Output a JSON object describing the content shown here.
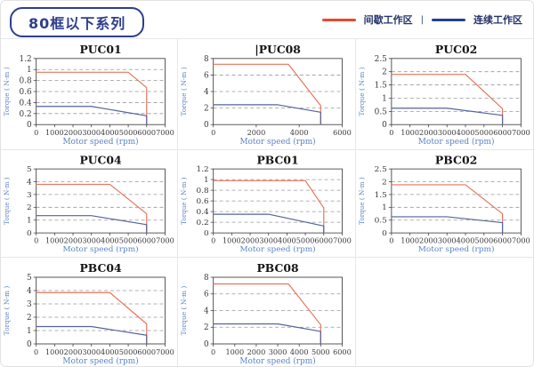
{
  "header": {
    "badge_label": "80框以下系列"
  },
  "legend": {
    "intermittent_label": "间歇工作区",
    "separator": "|",
    "continuous_label": "连续工作区"
  },
  "theme": {
    "badge_blue": "#2e3e8e",
    "legend_red": "#e8492c",
    "legend_blue": "#24408e",
    "curve_red": "#e8745e",
    "curve_blue": "#55639b",
    "axis_label_blue": "#5b84c7",
    "tick_color": "#3a3a3a",
    "grid_color": "#999999",
    "plot_border": "#444444",
    "title_color": "#141414"
  },
  "chart_data": [
    {
      "type": "line",
      "title": "PUC01",
      "title_caret": "",
      "xlabel": "Motor speed (rpm)",
      "ylabel": "Torque ( N-m )",
      "xlim": [
        0,
        7000
      ],
      "xstep": 1000,
      "ylim": [
        0,
        1.2
      ],
      "ystep": 0.2,
      "grid": "horizontal-dashed",
      "legend_position": "none",
      "series": [
        {
          "name": "间歇工作区",
          "color": "#e8745e",
          "points": [
            [
              0,
              0.95
            ],
            [
              5000,
              0.95
            ],
            [
              6000,
              0.67
            ],
            [
              6000,
              0
            ]
          ]
        },
        {
          "name": "连续工作区",
          "color": "#55639b",
          "points": [
            [
              0,
              0.33
            ],
            [
              3000,
              0.33
            ],
            [
              6000,
              0.16
            ],
            [
              6000,
              0
            ]
          ]
        }
      ]
    },
    {
      "type": "line",
      "title": "PUC08",
      "title_caret": "|",
      "xlabel": "Motor speed (rpm)",
      "ylabel": "Torque ( N-m )",
      "xlim": [
        0,
        6000
      ],
      "xstep": 2000,
      "ylim": [
        0,
        8
      ],
      "ystep": 2,
      "grid": "horizontal-dashed",
      "legend_position": "none",
      "series": [
        {
          "name": "间歇工作区",
          "color": "#e8745e",
          "points": [
            [
              0,
              7.3
            ],
            [
              3500,
              7.3
            ],
            [
              5000,
              2.3
            ],
            [
              5000,
              0
            ]
          ]
        },
        {
          "name": "连续工作区",
          "color": "#55639b",
          "points": [
            [
              0,
              2.4
            ],
            [
              3000,
              2.4
            ],
            [
              5000,
              1.5
            ],
            [
              5000,
              0
            ]
          ]
        }
      ]
    },
    {
      "type": "line",
      "title": "PUC02",
      "title_caret": "",
      "xlabel": "Motor speed (rpm)",
      "ylabel": "Torque ( N-m )",
      "xlim": [
        0,
        7000
      ],
      "xstep": 1000,
      "ylim": [
        0,
        2.5
      ],
      "ystep": 0.5,
      "grid": "horizontal-dashed",
      "legend_position": "none",
      "series": [
        {
          "name": "间歇工作区",
          "color": "#e8745e",
          "points": [
            [
              0,
              1.9
            ],
            [
              4000,
              1.9
            ],
            [
              6000,
              0.6
            ],
            [
              6000,
              0
            ]
          ]
        },
        {
          "name": "连续工作区",
          "color": "#55639b",
          "points": [
            [
              0,
              0.62
            ],
            [
              3000,
              0.62
            ],
            [
              6000,
              0.35
            ],
            [
              6000,
              0
            ]
          ]
        }
      ]
    },
    {
      "type": "line",
      "title": "PUC04",
      "title_caret": "",
      "xlabel": "Motor speed (rpm)",
      "ylabel": "Torque ( N-m )",
      "xlim": [
        0,
        7000
      ],
      "xstep": 1000,
      "ylim": [
        0,
        5
      ],
      "ystep": 1,
      "grid": "horizontal-dashed",
      "legend_position": "none",
      "series": [
        {
          "name": "间歇工作区",
          "color": "#e8745e",
          "points": [
            [
              0,
              3.8
            ],
            [
              4000,
              3.8
            ],
            [
              6000,
              1.5
            ],
            [
              6000,
              0
            ]
          ]
        },
        {
          "name": "连续工作区",
          "color": "#55639b",
          "points": [
            [
              0,
              1.35
            ],
            [
              3000,
              1.35
            ],
            [
              6000,
              0.65
            ],
            [
              6000,
              0
            ]
          ]
        }
      ]
    },
    {
      "type": "line",
      "title": "PBC01",
      "title_caret": "",
      "xlabel": "Motor speed (rpm)",
      "ylabel": "Torque ( N-m )",
      "xlim": [
        0,
        7000
      ],
      "xstep": 1000,
      "ylim": [
        0,
        1.2
      ],
      "ystep": 0.2,
      "grid": "horizontal-dashed",
      "legend_position": "none",
      "series": [
        {
          "name": "间歇工作区",
          "color": "#e8745e",
          "points": [
            [
              0,
              0.98
            ],
            [
              5000,
              0.98
            ],
            [
              6000,
              0.47
            ],
            [
              6000,
              0
            ]
          ]
        },
        {
          "name": "连续工作区",
          "color": "#55639b",
          "points": [
            [
              0,
              0.35
            ],
            [
              3000,
              0.35
            ],
            [
              6000,
              0.13
            ],
            [
              6000,
              0
            ]
          ]
        }
      ]
    },
    {
      "type": "line",
      "title": "PBC02",
      "title_caret": "",
      "xlabel": "Motor speed (rpm)",
      "ylabel": "Torque ( N-m )",
      "xlim": [
        0,
        7000
      ],
      "xstep": 1000,
      "ylim": [
        0,
        2.5
      ],
      "ystep": 0.5,
      "grid": "horizontal-dashed",
      "legend_position": "none",
      "series": [
        {
          "name": "间歇工作区",
          "color": "#e8745e",
          "points": [
            [
              0,
              1.88
            ],
            [
              4000,
              1.88
            ],
            [
              6000,
              0.75
            ],
            [
              6000,
              0
            ]
          ]
        },
        {
          "name": "连续工作区",
          "color": "#55639b",
          "points": [
            [
              0,
              0.63
            ],
            [
              3000,
              0.63
            ],
            [
              6000,
              0.4
            ],
            [
              6000,
              0
            ]
          ]
        }
      ]
    },
    {
      "type": "line",
      "title": "PBC04",
      "title_caret": "",
      "xlabel": "Motor speed (rpm)",
      "ylabel": "Torque ( N-m )",
      "xlim": [
        0,
        7000
      ],
      "xstep": 1000,
      "ylim": [
        0,
        5
      ],
      "ystep": 1,
      "grid": "horizontal-dashed",
      "legend_position": "none",
      "series": [
        {
          "name": "间歇工作区",
          "color": "#e8745e",
          "points": [
            [
              0,
              3.85
            ],
            [
              4000,
              3.85
            ],
            [
              6000,
              1.5
            ],
            [
              6000,
              0
            ]
          ]
        },
        {
          "name": "连续工作区",
          "color": "#55639b",
          "points": [
            [
              0,
              1.3
            ],
            [
              3000,
              1.3
            ],
            [
              6000,
              0.65
            ],
            [
              6000,
              0
            ]
          ]
        }
      ]
    },
    {
      "type": "line",
      "title": "PBC08",
      "title_caret": "",
      "xlabel": "Motor speed (rpm)",
      "ylabel": "Torque ( N-m )",
      "xlim": [
        0,
        6000
      ],
      "xstep": 1000,
      "ylim": [
        0,
        8
      ],
      "ystep": 2,
      "grid": "horizontal-dashed",
      "legend_position": "none",
      "series": [
        {
          "name": "间歇工作区",
          "color": "#e8745e",
          "points": [
            [
              0,
              7.2
            ],
            [
              3500,
              7.2
            ],
            [
              5000,
              2.3
            ],
            [
              5000,
              0
            ]
          ]
        },
        {
          "name": "连续工作区",
          "color": "#55639b",
          "points": [
            [
              0,
              2.4
            ],
            [
              3000,
              2.4
            ],
            [
              5000,
              1.5
            ],
            [
              5000,
              0
            ]
          ]
        }
      ]
    }
  ]
}
